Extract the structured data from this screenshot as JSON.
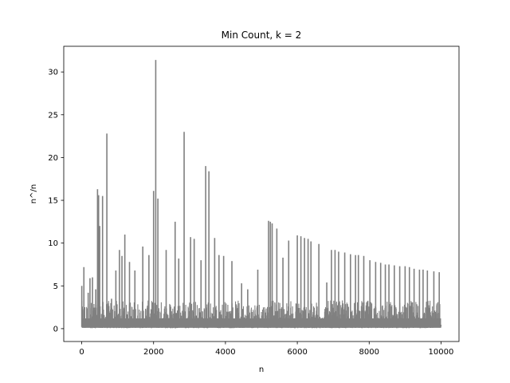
{
  "chart_data": {
    "type": "line",
    "title": "Min Count, k = 2",
    "xlabel": "n",
    "ylabel": "n^/n",
    "xlim": [
      -500,
      10500
    ],
    "ylim": [
      -1.5,
      33.0
    ],
    "xticks": [
      0,
      2000,
      4000,
      6000,
      8000,
      10000
    ],
    "xtick_labels": [
      "0",
      "2000",
      "4000",
      "6000",
      "8000",
      "10000"
    ],
    "yticks": [
      0,
      5,
      10,
      15,
      20,
      25,
      30
    ],
    "ytick_labels": [
      "0",
      "5",
      "10",
      "15",
      "20",
      "25",
      "30"
    ],
    "grid": false,
    "series_color": "#808080",
    "series": [
      {
        "x_range": [
          1,
          10000
        ],
        "baseline": 0.3,
        "noise_max": 3.0,
        "spikes": [
          {
            "x": 2,
            "y": 5.0
          },
          {
            "x": 60,
            "y": 7.2
          },
          {
            "x": 180,
            "y": 4.2
          },
          {
            "x": 230,
            "y": 5.9
          },
          {
            "x": 300,
            "y": 6.0
          },
          {
            "x": 390,
            "y": 4.6
          },
          {
            "x": 440,
            "y": 16.3
          },
          {
            "x": 470,
            "y": 15.6
          },
          {
            "x": 500,
            "y": 12.0
          },
          {
            "x": 580,
            "y": 15.5
          },
          {
            "x": 700,
            "y": 22.8
          },
          {
            "x": 830,
            "y": 3.5
          },
          {
            "x": 950,
            "y": 6.8
          },
          {
            "x": 1050,
            "y": 9.2
          },
          {
            "x": 1120,
            "y": 8.5
          },
          {
            "x": 1200,
            "y": 11.0
          },
          {
            "x": 1330,
            "y": 7.8
          },
          {
            "x": 1480,
            "y": 6.8
          },
          {
            "x": 1700,
            "y": 9.6
          },
          {
            "x": 1870,
            "y": 8.6
          },
          {
            "x": 2000,
            "y": 16.1
          },
          {
            "x": 2060,
            "y": 31.4
          },
          {
            "x": 2120,
            "y": 15.2
          },
          {
            "x": 2350,
            "y": 9.2
          },
          {
            "x": 2600,
            "y": 12.5
          },
          {
            "x": 2700,
            "y": 8.2
          },
          {
            "x": 2850,
            "y": 23.0
          },
          {
            "x": 3030,
            "y": 10.7
          },
          {
            "x": 3130,
            "y": 10.5
          },
          {
            "x": 3320,
            "y": 8.0
          },
          {
            "x": 3450,
            "y": 19.0
          },
          {
            "x": 3540,
            "y": 18.4
          },
          {
            "x": 3700,
            "y": 10.6
          },
          {
            "x": 3820,
            "y": 8.6
          },
          {
            "x": 3950,
            "y": 8.5
          },
          {
            "x": 4180,
            "y": 7.9
          },
          {
            "x": 4450,
            "y": 5.3
          },
          {
            "x": 4620,
            "y": 4.6
          },
          {
            "x": 4900,
            "y": 6.9
          },
          {
            "x": 5200,
            "y": 12.6
          },
          {
            "x": 5250,
            "y": 12.5
          },
          {
            "x": 5300,
            "y": 12.3
          },
          {
            "x": 5430,
            "y": 11.7
          },
          {
            "x": 5600,
            "y": 8.3
          },
          {
            "x": 5760,
            "y": 10.3
          },
          {
            "x": 6000,
            "y": 10.9
          },
          {
            "x": 6100,
            "y": 10.8
          },
          {
            "x": 6200,
            "y": 10.6
          },
          {
            "x": 6300,
            "y": 10.5
          },
          {
            "x": 6380,
            "y": 10.2
          },
          {
            "x": 6600,
            "y": 9.9
          },
          {
            "x": 6820,
            "y": 5.4
          },
          {
            "x": 6950,
            "y": 9.2
          },
          {
            "x": 7050,
            "y": 9.2
          },
          {
            "x": 7150,
            "y": 9.0
          },
          {
            "x": 7320,
            "y": 8.9
          },
          {
            "x": 7480,
            "y": 8.7
          },
          {
            "x": 7620,
            "y": 8.6
          },
          {
            "x": 7700,
            "y": 8.6
          },
          {
            "x": 7850,
            "y": 8.5
          },
          {
            "x": 8020,
            "y": 8.0
          },
          {
            "x": 8180,
            "y": 7.8
          },
          {
            "x": 8320,
            "y": 7.7
          },
          {
            "x": 8450,
            "y": 7.5
          },
          {
            "x": 8550,
            "y": 7.5
          },
          {
            "x": 8700,
            "y": 7.4
          },
          {
            "x": 8850,
            "y": 7.3
          },
          {
            "x": 9000,
            "y": 7.3
          },
          {
            "x": 9120,
            "y": 7.2
          },
          {
            "x": 9250,
            "y": 7.0
          },
          {
            "x": 9400,
            "y": 6.9
          },
          {
            "x": 9500,
            "y": 6.9
          },
          {
            "x": 9620,
            "y": 6.8
          },
          {
            "x": 9800,
            "y": 6.7
          },
          {
            "x": 9950,
            "y": 6.6
          }
        ]
      }
    ]
  }
}
